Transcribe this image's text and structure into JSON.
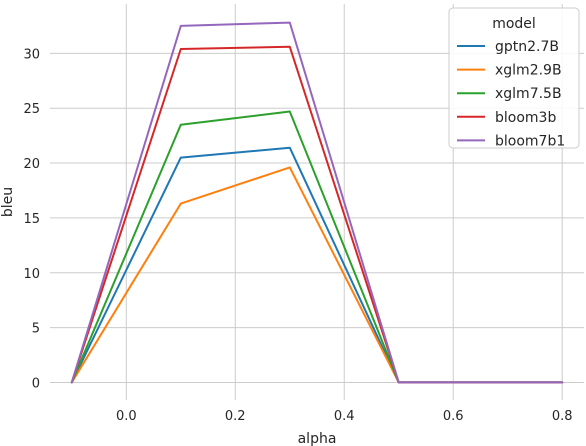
{
  "chart_data": {
    "type": "line",
    "xlabel": "alpha",
    "ylabel": "bleu",
    "xlim": [
      -0.14,
      0.84
    ],
    "ylim": [
      -1.6,
      34.5
    ],
    "xticks": [
      0.0,
      0.2,
      0.4,
      0.6,
      0.8
    ],
    "xtick_labels": [
      "0.0",
      "0.2",
      "0.4",
      "0.6",
      "0.8"
    ],
    "yticks": [
      0,
      5,
      10,
      15,
      20,
      25,
      30
    ],
    "ytick_labels": [
      "0",
      "5",
      "10",
      "15",
      "20",
      "25",
      "30"
    ],
    "grid": true,
    "legend": {
      "title": "model",
      "position": "top-right"
    },
    "x": [
      -0.1,
      0.1,
      0.3,
      0.5,
      0.8
    ],
    "series": [
      {
        "name": "gptn2.7B",
        "color": "#1f77b4",
        "values": [
          0,
          20.5,
          21.4,
          0,
          0
        ]
      },
      {
        "name": "xglm2.9B",
        "color": "#ff7f0e",
        "values": [
          0,
          16.3,
          19.6,
          0,
          0
        ]
      },
      {
        "name": "xglm7.5B",
        "color": "#2ca02c",
        "values": [
          0,
          23.5,
          24.7,
          0,
          0
        ]
      },
      {
        "name": "bloom3b",
        "color": "#d62728",
        "values": [
          0,
          30.4,
          30.6,
          0,
          0
        ]
      },
      {
        "name": "bloom7b1",
        "color": "#9467bd",
        "values": [
          0,
          32.5,
          32.8,
          0,
          0
        ]
      }
    ]
  }
}
